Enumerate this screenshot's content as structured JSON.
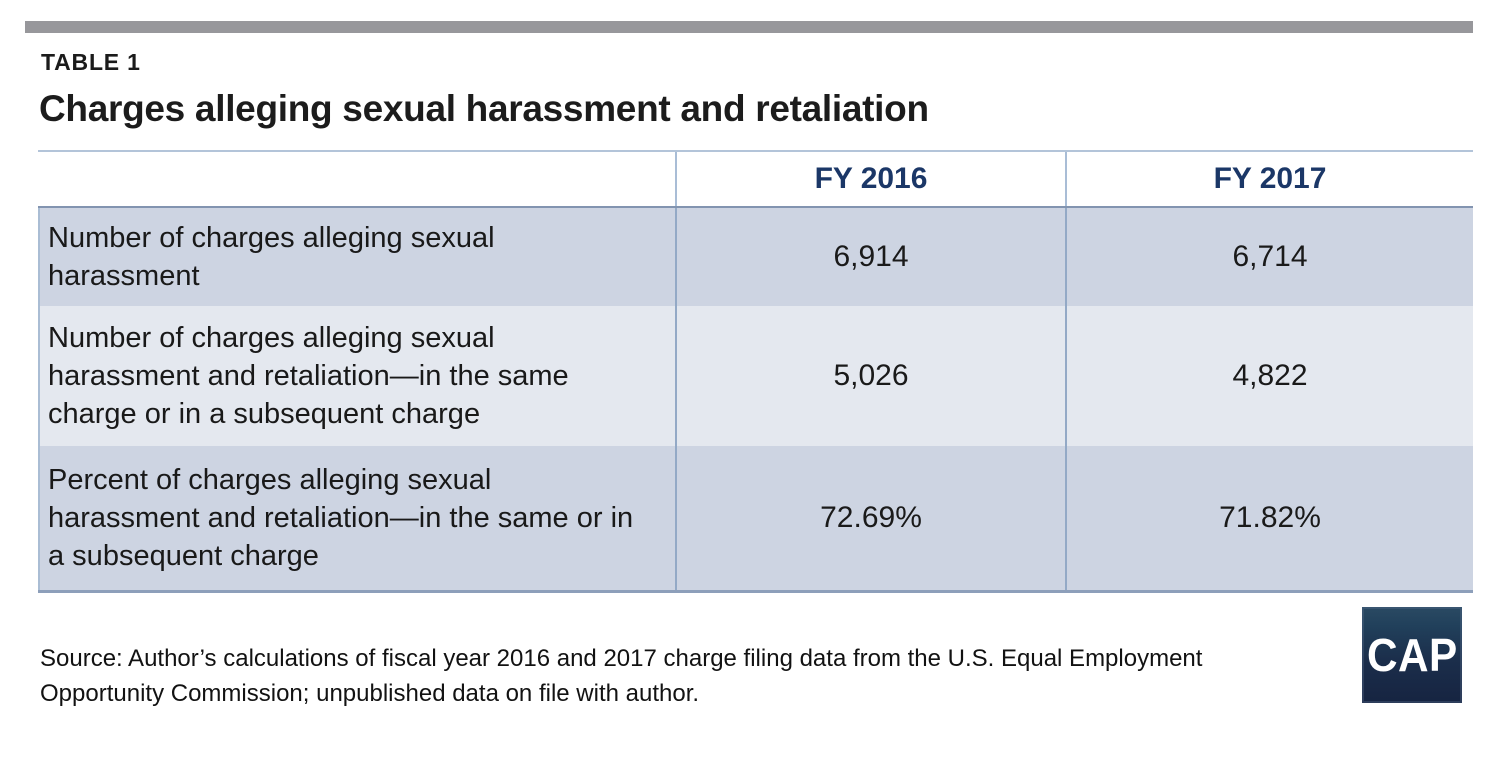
{
  "chart_data": {
    "type": "table",
    "kicker": "TABLE 1",
    "title": "Charges alleging sexual harassment and retaliation",
    "columns": [
      "FY 2016",
      "FY 2017"
    ],
    "rows": [
      {
        "label": "Number of charges alleging sexual harassment",
        "values": [
          "6,914",
          "6,714"
        ]
      },
      {
        "label": "Number of charges alleging sexual harassment and retaliation—in the same charge or in a subsequent charge",
        "values": [
          "5,026",
          "4,822"
        ]
      },
      {
        "label": "Percent of charges alleging sexual harassment and retaliation—in the same or in a subsequent charge",
        "values": [
          "72.69%",
          "71.82%"
        ]
      }
    ],
    "layout": {
      "row_shading": "alternating",
      "header_background": "#ffffff",
      "value_alignment": "center"
    }
  },
  "footer": {
    "source_lines": [
      "Source: Author’s calculations of fiscal year 2016 and 2017 charge filing data from the U.S. Equal Employment",
      "Opportunity Commission; unpublished data on file with author."
    ],
    "logo_text": "CAP"
  },
  "colors": {
    "accent_navy": "#1b3767",
    "row_dark": "#cdd4e2",
    "row_light": "#e4e8ef",
    "divider_blue": "#93a9c6",
    "top_bar_gray": "#97979b",
    "logo_navy": "#1b2e4b"
  }
}
